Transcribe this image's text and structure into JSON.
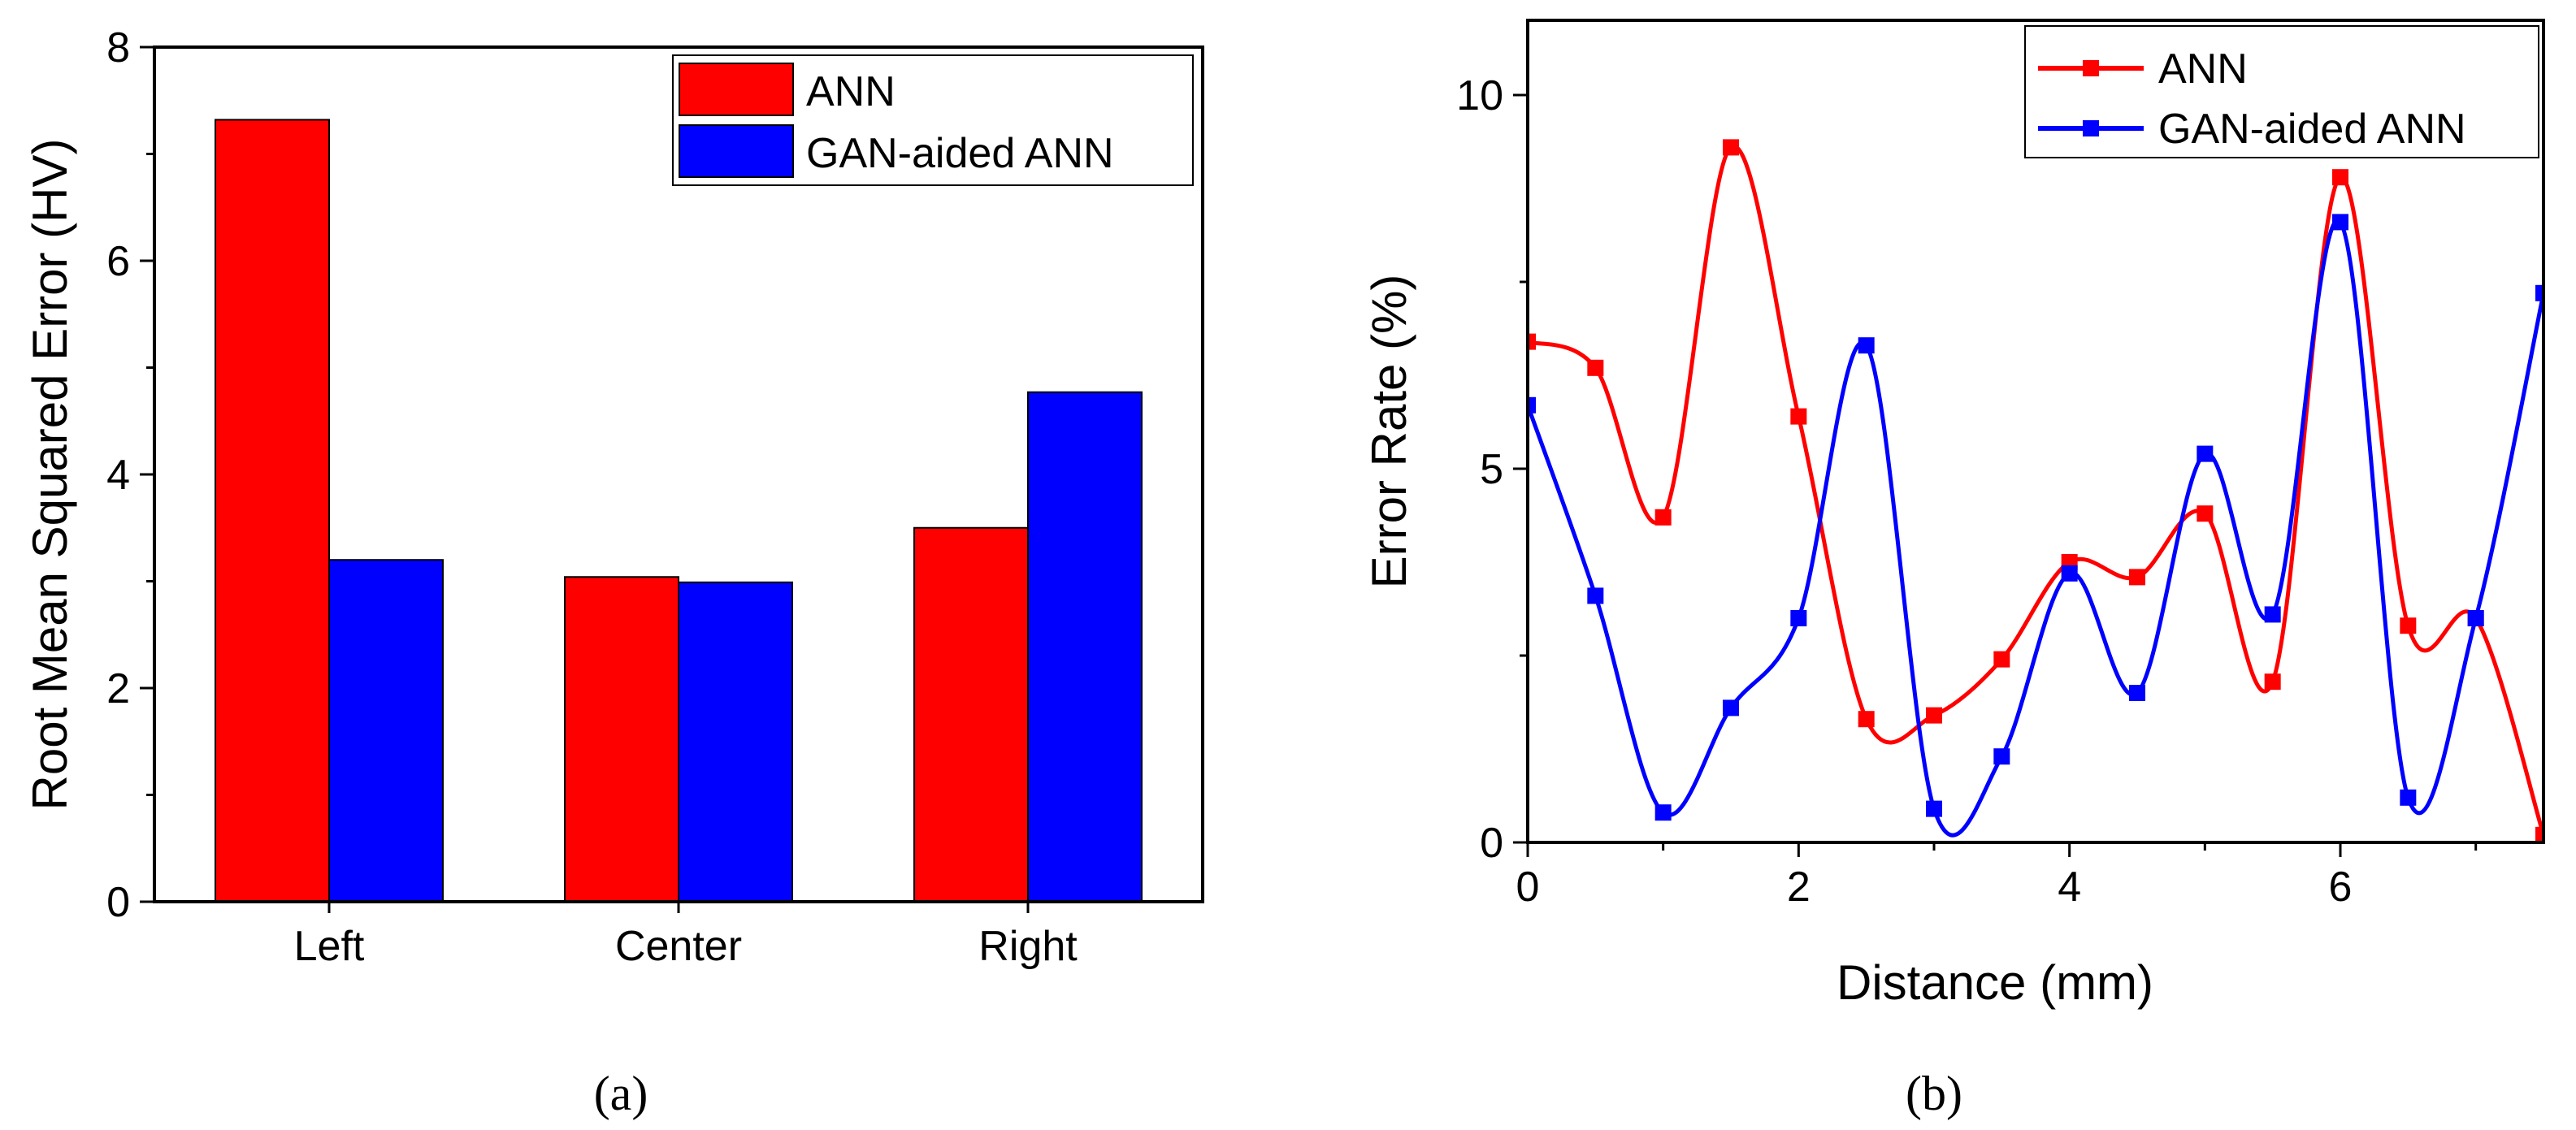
{
  "chart_data": [
    {
      "type": "bar",
      "panel": "a",
      "caption": "(a)",
      "categories": [
        "Left",
        "Center",
        "Right"
      ],
      "series": [
        {
          "name": "ANN",
          "color": "#ff0000",
          "values": [
            7.32,
            3.04,
            3.5
          ]
        },
        {
          "name": "GAN-aided ANN",
          "color": "#0000ff",
          "values": [
            3.2,
            2.99,
            4.77
          ]
        }
      ],
      "title": "",
      "xlabel": "",
      "ylabel": "Root Mean Squared Error (HV)",
      "ylim": [
        0,
        8
      ],
      "yticks": [
        "0",
        "2",
        "4",
        "6",
        "8"
      ],
      "legend": "top-right",
      "grid": false
    },
    {
      "type": "line",
      "panel": "b",
      "caption": "(b)",
      "series": [
        {
          "name": "ANN",
          "color": "#ff0000",
          "x": [
            0,
            0.5,
            1,
            1.5,
            2,
            2.5,
            3,
            3.5,
            4,
            4.5,
            5,
            5.5,
            6,
            6.5,
            7,
            7.5
          ],
          "y": [
            6.7,
            6.35,
            4.35,
            9.3,
            5.7,
            1.65,
            1.7,
            2.45,
            3.75,
            3.55,
            4.4,
            2.15,
            8.9,
            2.9,
            3.0,
            0.1
          ]
        },
        {
          "name": "GAN-aided ANN",
          "color": "#0000ff",
          "x": [
            0,
            0.5,
            1,
            1.5,
            2,
            2.5,
            3,
            3.5,
            4,
            4.5,
            5,
            5.5,
            6,
            6.5,
            7,
            7.5
          ],
          "y": [
            5.85,
            3.3,
            0.4,
            1.8,
            3.0,
            6.65,
            0.45,
            1.15,
            3.6,
            2.0,
            5.2,
            3.05,
            8.3,
            0.6,
            3.0,
            7.35
          ]
        }
      ],
      "title": "",
      "xlabel": "Distance (mm)",
      "ylabel": "Error Rate (%)",
      "xlim": [
        0,
        7.5
      ],
      "ylim": [
        0,
        11
      ],
      "xticks": [
        "0",
        "2",
        "4",
        "6"
      ],
      "yticks": [
        "0",
        "5",
        "10"
      ],
      "legend": "top-right",
      "grid": false
    }
  ]
}
